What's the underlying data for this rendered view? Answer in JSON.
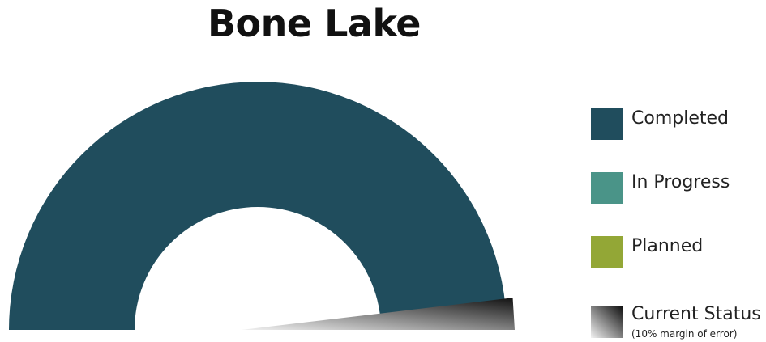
{
  "chart_data": {
    "type": "gauge",
    "title": "Bone Lake",
    "completed_fraction": 1.0,
    "in_progress_fraction": 0.0,
    "planned_fraction": 0.0,
    "current_status_fraction": 0.96,
    "current_status_margin_fraction": 0.1,
    "legend": [
      {
        "label": "Completed",
        "color": "#204d5d"
      },
      {
        "label": "In Progress",
        "color": "#4a9488"
      },
      {
        "label": "Planned",
        "color": "#93a736"
      },
      {
        "label": "Current Status",
        "note": "(10% margin of error)",
        "gradient": [
          "#111111",
          "#f2f2f2"
        ]
      }
    ]
  }
}
